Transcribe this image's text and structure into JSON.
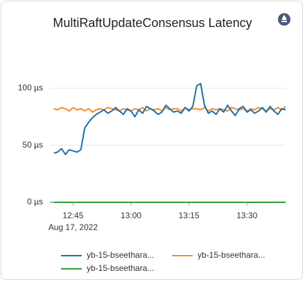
{
  "chart_data": {
    "type": "line",
    "title": "MultiRaftUpdateConsensus Latency",
    "x": [
      "12:40",
      "12:41",
      "12:42",
      "12:43",
      "12:44",
      "12:45",
      "12:46",
      "12:47",
      "12:48",
      "12:49",
      "12:50",
      "12:51",
      "12:52",
      "12:53",
      "12:54",
      "12:55",
      "12:56",
      "12:57",
      "12:58",
      "12:59",
      "13:00",
      "13:01",
      "13:02",
      "13:03",
      "13:04",
      "13:05",
      "13:06",
      "13:07",
      "13:08",
      "13:09",
      "13:10",
      "13:11",
      "13:12",
      "13:13",
      "13:14",
      "13:15",
      "13:16",
      "13:17",
      "13:18",
      "13:19",
      "13:20",
      "13:21",
      "13:22",
      "13:23",
      "13:24",
      "13:25",
      "13:26",
      "13:27",
      "13:28",
      "13:29",
      "13:30",
      "13:31",
      "13:32",
      "13:33",
      "13:34",
      "13:35",
      "13:36",
      "13:37",
      "13:38",
      "13:39",
      "13:40"
    ],
    "series": [
      {
        "name": "yb-15-bseethara...",
        "color": "#1f6ea5",
        "values": [
          43,
          44,
          47,
          42,
          46,
          45,
          44,
          46,
          65,
          70,
          74,
          77,
          79,
          81,
          78,
          80,
          83,
          80,
          77,
          82,
          80,
          75,
          81,
          78,
          84,
          82,
          80,
          77,
          79,
          85,
          82,
          79,
          80,
          78,
          83,
          80,
          84,
          102,
          104,
          85,
          78,
          80,
          77,
          82,
          79,
          85,
          80,
          76,
          82,
          84,
          79,
          81,
          78,
          80,
          83,
          79,
          84,
          80,
          77,
          82,
          81
        ]
      },
      {
        "name": "yb-15-bseethara...",
        "color": "#f5892c",
        "values": [
          82,
          81,
          83,
          82,
          80,
          83,
          81,
          82,
          80,
          82,
          79,
          81,
          82,
          81,
          83,
          82,
          81,
          80,
          82,
          81,
          80,
          82,
          81,
          83,
          80,
          82,
          81,
          82,
          80,
          83,
          81,
          82,
          82,
          80,
          83,
          81,
          82,
          82,
          81,
          83,
          80,
          82,
          81,
          82,
          81,
          80,
          83,
          82,
          81,
          82,
          80,
          82,
          81,
          83,
          82,
          80,
          82,
          81,
          83,
          81,
          84
        ]
      },
      {
        "name": "yb-15-bseethara...",
        "color": "#2f9a3c",
        "values": [
          0,
          0,
          0,
          0,
          0,
          0,
          0,
          0,
          0,
          0,
          0,
          0,
          0,
          0,
          0,
          0,
          0,
          0,
          0,
          0,
          0,
          0,
          0,
          0,
          0,
          0,
          0,
          0,
          0,
          0,
          0,
          0,
          0,
          0,
          0,
          0,
          0,
          0,
          0,
          0,
          0,
          0,
          0,
          0,
          0,
          0,
          0,
          0,
          0,
          0,
          0,
          0,
          0,
          0,
          0,
          0,
          0,
          0,
          0,
          0,
          0
        ]
      }
    ],
    "xlim": [
      "12:39",
      "13:40"
    ],
    "xticks": [
      "12:45",
      "13:00",
      "13:15",
      "13:30"
    ],
    "xtick_sublabel": "Aug 17, 2022",
    "ylim": [
      0,
      125
    ],
    "yticks": [
      {
        "value": 0,
        "label": "0 µs"
      },
      {
        "value": 50,
        "label": "50 µs"
      },
      {
        "value": 100,
        "label": "100 µs"
      }
    ],
    "grid": true
  }
}
